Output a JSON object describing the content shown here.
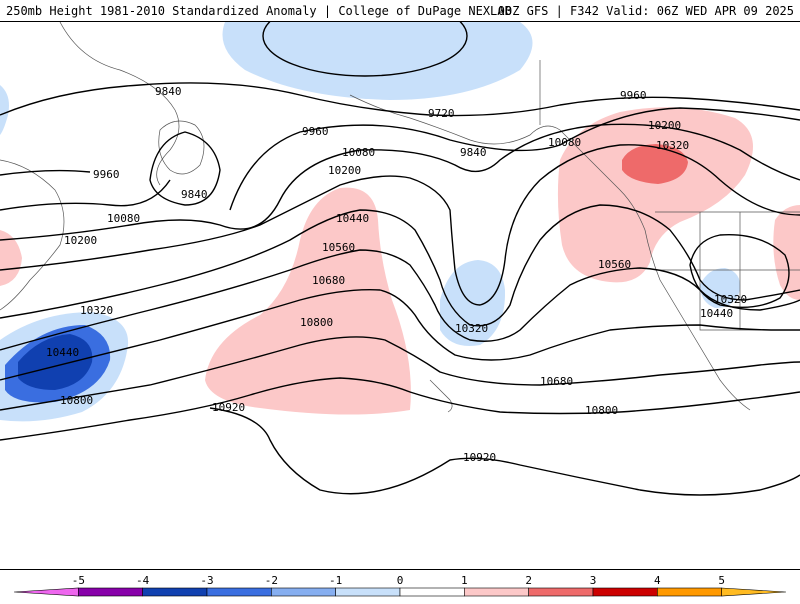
{
  "header": {
    "title": "250mb Height 1981-2010 Standardized Anomaly | College of DuPage NEXLAB",
    "run_info": "00Z GFS | F342 Valid: 06Z WED APR 09 2025"
  },
  "contour_labels": [
    "9840",
    "9720",
    "9960",
    "9840",
    "9960",
    "10080",
    "9840",
    "10080",
    "10200",
    "9960",
    "10200",
    "10080",
    "10320",
    "10200",
    "10320",
    "10440",
    "10560",
    "10680",
    "10440",
    "10800",
    "10320",
    "10560",
    "10320",
    "10440",
    "10680",
    "10800",
    "10920",
    "10800",
    "10920"
  ],
  "colorbar": {
    "ticks": [
      "-5",
      "-4",
      "-3",
      "-2",
      "-1",
      "0",
      "1",
      "2",
      "3",
      "4",
      "5"
    ],
    "colors": [
      "#ee66ee",
      "#8800aa",
      "#1040b0",
      "#3a6ee0",
      "#86aef0",
      "#c8e0fa",
      "#ffffff",
      "#fcc8c8",
      "#ee6a6a",
      "#cc0000",
      "#ff9900",
      "#ffbb22"
    ]
  }
}
